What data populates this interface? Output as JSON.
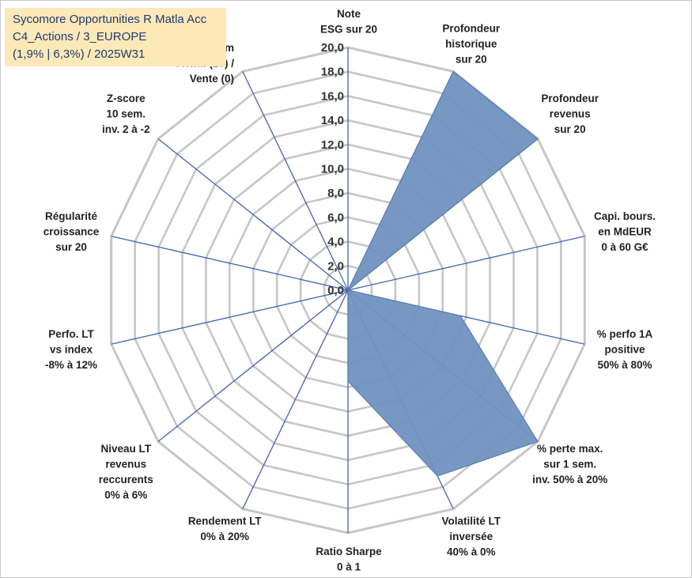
{
  "title_lines": [
    "Sycomore Opportunities R Matla Acc",
    "C4_Actions / 3_EUROPE",
    "(1,9% | 6,3%) / 2025W31"
  ],
  "chart_data": {
    "type": "radar",
    "title": "Sycomore Opportunities R Matla Acc C4_Actions / 3_EUROPE (1,9% | 6,3%) / 2025W31",
    "rlim": [
      0,
      20
    ],
    "tick_values": [
      0,
      2,
      4,
      6,
      8,
      10,
      12,
      14,
      16,
      18,
      20
    ],
    "tick_labels": [
      "0,0",
      "2,0",
      "4,0",
      "6,0",
      "8,0",
      "10,0",
      "12,0",
      "14,0",
      "16,0",
      "18,0",
      "20,0"
    ],
    "grid": true,
    "categories": [
      {
        "label": [
          "Note",
          "ESG sur 20"
        ]
      },
      {
        "label": [
          "Profondeur",
          "historique",
          "sur 20"
        ]
      },
      {
        "label": [
          "Profondeur",
          "revenus",
          "sur 20"
        ]
      },
      {
        "label": [
          "Capi. bours.",
          "en MdEUR",
          "0 à 60 G€"
        ]
      },
      {
        "label": [
          "% perfo 1A",
          "positive",
          "50% à 80%"
        ]
      },
      {
        "label": [
          "% perte max.",
          "sur 1 sem.",
          "inv. 50% à 20%"
        ]
      },
      {
        "label": [
          "Volatilité LT",
          "inversée",
          "40% à 0%"
        ]
      },
      {
        "label": [
          "Ratio Sharpe",
          "0 à 1"
        ]
      },
      {
        "label": [
          "Rendement LT",
          "0% à 20%"
        ]
      },
      {
        "label": [
          "Niveau LT",
          "revenus",
          "reccurents",
          "0% à 6%"
        ]
      },
      {
        "label": [
          "Perfo. LT",
          "vs index",
          "-8% à 12%"
        ]
      },
      {
        "label": [
          "Régularité",
          "croissance",
          "sur 20"
        ]
      },
      {
        "label": [
          "Z-score",
          "10 sem.",
          "inv. 2 à -2"
        ]
      },
      {
        "label": [
          "Momentum",
          "Achat (20) /",
          "Vente (0)"
        ]
      }
    ],
    "series": [
      {
        "values": [
          0,
          20,
          20,
          0,
          9.5,
          20,
          17,
          7.5,
          0,
          0,
          0,
          0,
          0,
          2
        ],
        "fill": "#7092bf",
        "stroke": "#5a7fb0"
      }
    ],
    "colors": {
      "grid": "#c6c6c6",
      "axis": "#3b64b5",
      "title_bg": "#fde9b8",
      "title_text": "#1f3a6e"
    }
  }
}
